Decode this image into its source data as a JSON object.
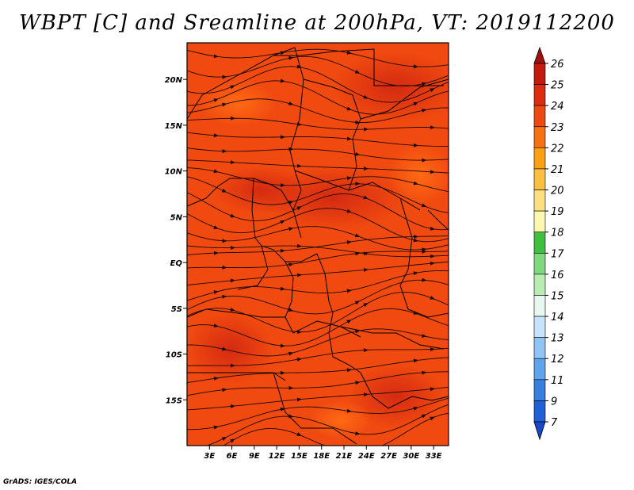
{
  "title": "WBPT [C] and Sreamline at 200hPa, VT: 2019112200",
  "credit": "GrADS: IGES/COLA",
  "map": {
    "lon_range": [
      0,
      35
    ],
    "lat_range": [
      -20,
      24
    ],
    "y_ticks": [
      "20N",
      "15N",
      "10N",
      "5N",
      "EQ",
      "5S",
      "10S",
      "15S"
    ],
    "y_tick_values": [
      20,
      15,
      10,
      5,
      0,
      -5,
      -10,
      -15
    ],
    "x_ticks": [
      "3E",
      "6E",
      "9E",
      "12E",
      "15E",
      "18E",
      "21E",
      "24E",
      "27E",
      "30E",
      "33E"
    ],
    "x_tick_values": [
      3,
      6,
      9,
      12,
      15,
      18,
      21,
      24,
      27,
      30,
      33
    ],
    "field_colors": [
      "#f04a10",
      "#e03a10",
      "#d42a12",
      "#ff6010"
    ],
    "streamline_color": "#1a0a05",
    "boundary_color": "#000000"
  },
  "colorbar": {
    "levels": [
      "26",
      "25",
      "24",
      "23",
      "22",
      "21",
      "20",
      "19",
      "18",
      "17",
      "16",
      "15",
      "14",
      "13",
      "12",
      "11",
      "9",
      "7"
    ],
    "colors": [
      "#a01010",
      "#c41a10",
      "#dc2c10",
      "#ee4a10",
      "#f87010",
      "#fca010",
      "#fcc040",
      "#fce080",
      "#fcf8b0",
      "#40c040",
      "#80d880",
      "#b8ecb0",
      "#e8f8f0",
      "#c8e4fc",
      "#90c4f4",
      "#60a4ec",
      "#3880e0",
      "#2060d8",
      "#1848c8"
    ]
  }
}
